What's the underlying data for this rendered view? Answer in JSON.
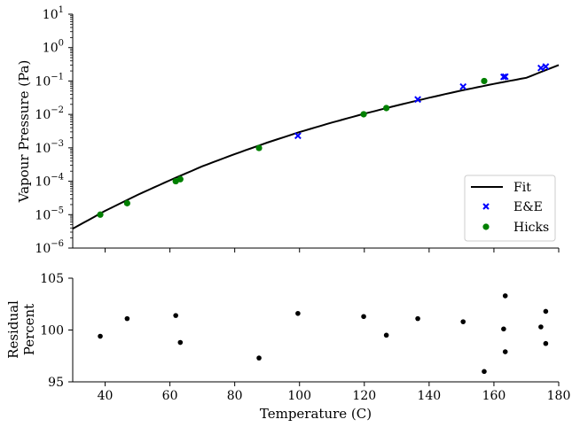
{
  "chart_data": [
    {
      "type": "line",
      "panel": "top",
      "ylabel": "Vapour Pressure (Pa)",
      "yscale": "log",
      "ylim_exponents": [
        -6,
        1
      ],
      "y_ticks": [
        {
          "base": "10",
          "exp": "1"
        },
        {
          "base": "10",
          "exp": "0"
        },
        {
          "base": "10",
          "exp": "−1"
        },
        {
          "base": "10",
          "exp": "−2"
        },
        {
          "base": "10",
          "exp": "−3"
        },
        {
          "base": "10",
          "exp": "−4"
        },
        {
          "base": "10",
          "exp": "−5"
        },
        {
          "base": "10",
          "exp": "−6"
        }
      ],
      "xlim": [
        30,
        180
      ],
      "legend": {
        "placement": "lower-right",
        "entries": [
          "Fit",
          "E&E",
          "Hicks"
        ]
      },
      "series": [
        {
          "name": "Fit",
          "kind": "line",
          "color": "#000000",
          "x": [
            30,
            40,
            50,
            60,
            70,
            80,
            90,
            100,
            110,
            120,
            130,
            140,
            150,
            160,
            170,
            180
          ],
          "y": [
            3.8e-06,
            1.3e-05,
            3.9e-05,
            0.000107,
            0.00028,
            0.00065,
            0.00143,
            0.00295,
            0.0057,
            0.0105,
            0.0185,
            0.0315,
            0.052,
            0.082,
            0.125,
            0.3
          ]
        },
        {
          "name": "E&E",
          "kind": "scatter",
          "marker": "x",
          "color": "#0000ff",
          "x": [
            99.5,
            136.5,
            150.5,
            163,
            163.5,
            174.5,
            176
          ],
          "y": [
            0.0023,
            0.028,
            0.068,
            0.133,
            0.135,
            0.245,
            0.27
          ]
        },
        {
          "name": "Hicks",
          "kind": "scatter",
          "marker": "circle",
          "color": "#008000",
          "x": [
            38.5,
            46.8,
            61.8,
            63.2,
            87.5,
            119.8,
            126.8,
            157
          ],
          "y": [
            1e-05,
            2.2e-05,
            0.0001,
            0.000115,
            0.00099,
            0.0101,
            0.0155,
            0.1
          ]
        }
      ]
    },
    {
      "type": "scatter",
      "panel": "bottom",
      "ylabel_lines": [
        "Residual",
        "Percent"
      ],
      "xlabel": "Temperature (C)",
      "xlim": [
        30,
        180
      ],
      "ylim": [
        95,
        105
      ],
      "x_ticks": [
        40,
        60,
        80,
        100,
        120,
        140,
        160,
        180
      ],
      "y_ticks": [
        95,
        100,
        105
      ],
      "series": [
        {
          "kind": "scatter",
          "marker": "circle",
          "color": "#000000",
          "x": [
            38.5,
            46.8,
            61.8,
            63.2,
            87.5,
            99.5,
            119.8,
            126.8,
            136.5,
            150.5,
            157,
            163,
            163.5,
            163.5,
            174.5,
            176,
            176
          ],
          "y": [
            99.4,
            101.1,
            101.4,
            98.8,
            97.3,
            101.6,
            101.3,
            99.5,
            101.1,
            100.8,
            96.0,
            100.1,
            103.3,
            97.9,
            100.3,
            101.8,
            98.7
          ]
        }
      ]
    }
  ]
}
